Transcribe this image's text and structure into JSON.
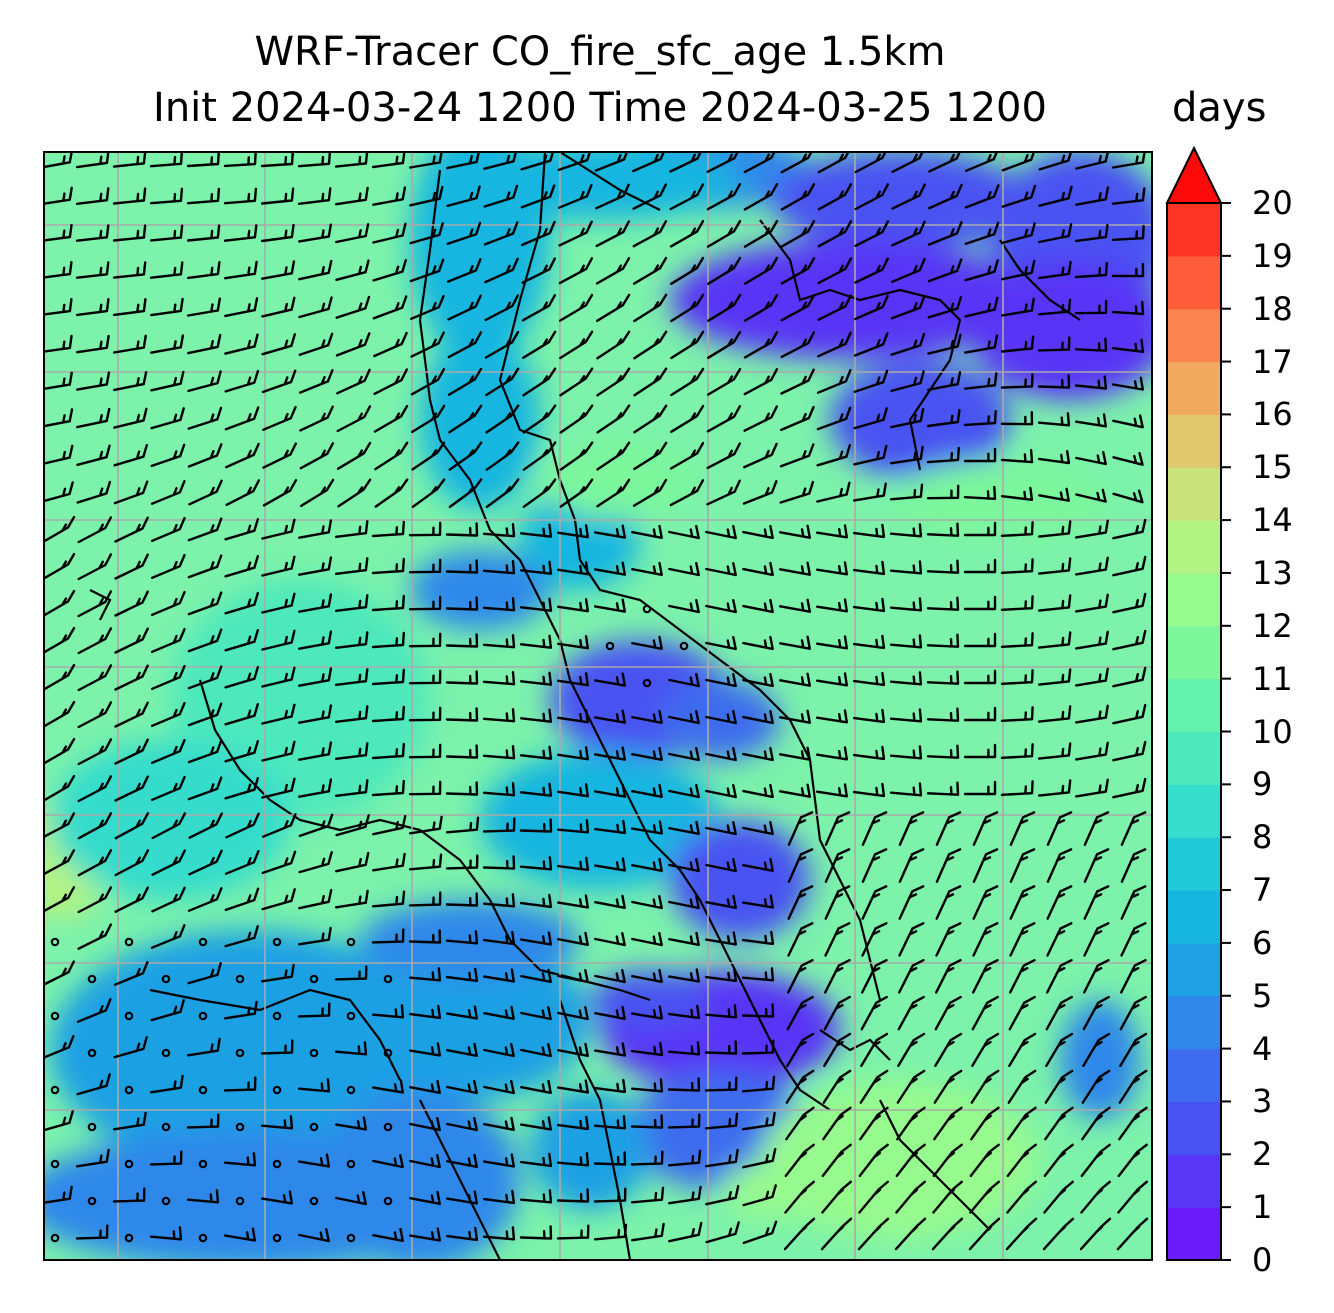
{
  "title_line1": "WRF-Tracer CO_fire_sfc_age 1.5km",
  "title_line2": "Init 2024-03-24 1200 Time 2024-03-25 1200",
  "colorbar": {
    "units": "days",
    "min": 0,
    "max": 20,
    "extend": "max",
    "tick_labels": [
      "0",
      "1",
      "2",
      "3",
      "4",
      "5",
      "6",
      "7",
      "8",
      "9",
      "10",
      "11",
      "12",
      "13",
      "14",
      "15",
      "16",
      "17",
      "18",
      "19",
      "20"
    ],
    "colors": [
      "#6a1cf8",
      "#5936f6",
      "#4a52f2",
      "#3d6dee",
      "#2f88ea",
      "#1fa0e4",
      "#16b6e0",
      "#22cad8",
      "#36dccc",
      "#4ee8bc",
      "#64f1ad",
      "#7cf79c",
      "#97fa8e",
      "#b2f383",
      "#c9e27a",
      "#e0c86f",
      "#f2a960",
      "#fb8550",
      "#fe5d3c",
      "#fe3424",
      "#ff0a0a"
    ]
  },
  "map": {
    "field": "CO_fire_sfc_age",
    "gridlines": true,
    "wind_barbs": true
  }
}
